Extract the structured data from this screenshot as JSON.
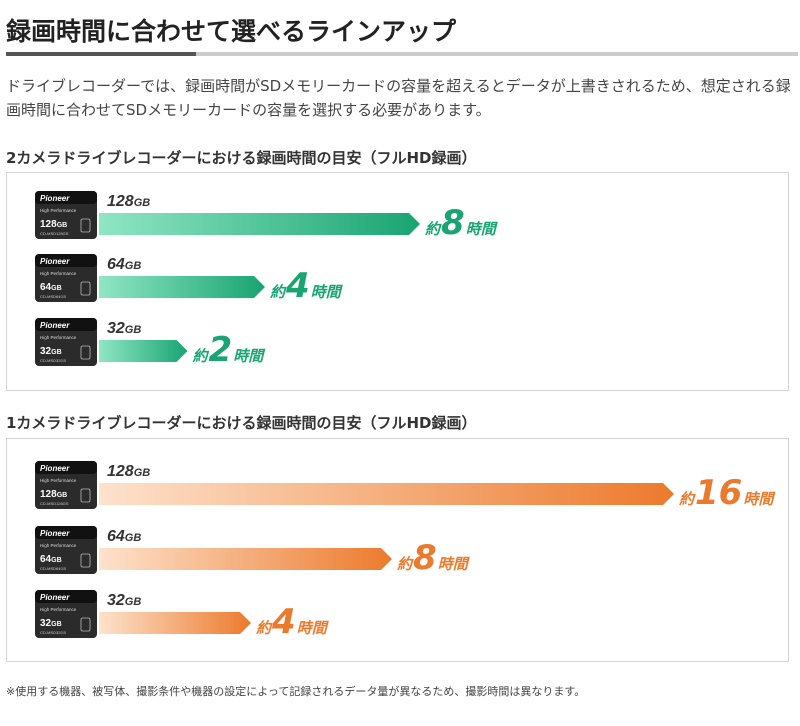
{
  "page": {
    "title": "録画時間に合わせて選べるラインアップ",
    "intro": "ドライブレコーダーでは、録画時間がSDメモリーカードの容量を超えるとデータが上書きされるため、想定される録画時間に合わせてSDメモリーカードの容量を選択する必要があります。",
    "footnote": "※使用する機器、被写体、撮影条件や機器の設定によって記録されるデータ量が異なるため、撮影時間は異なります。"
  },
  "card_text": {
    "brand": "Pioneer",
    "line": "High Performance"
  },
  "colors": {
    "green_start": "#8fe6c4",
    "green_end": "#19a472",
    "orange_start": "#fde2cc",
    "orange_end": "#ec7a2c",
    "card_body": "#2b2b2b"
  },
  "chart_data": [
    {
      "type": "bar",
      "title": "2カメラドライブレコーダーにおける録画時間の目安（フルHD録画）",
      "orientation": "horizontal",
      "categories": [
        "128GB",
        "64GB",
        "32GB"
      ],
      "card_labels": [
        {
          "capacity": "128GB",
          "model": "CD-MSD128GS"
        },
        {
          "capacity": "64GB",
          "model": "CD-MSD64GS"
        },
        {
          "capacity": "32GB",
          "model": "CD-MSD32GS"
        }
      ],
      "values": [
        8,
        4,
        2
      ],
      "value_labels": [
        {
          "prefix": "約",
          "number": "8",
          "unit": "時間"
        },
        {
          "prefix": "約",
          "number": "4",
          "unit": "時間"
        },
        {
          "prefix": "約",
          "number": "2",
          "unit": "時間"
        }
      ],
      "color": "green"
    },
    {
      "type": "bar",
      "title": "1カメラドライブレコーダーにおける録画時間の目安（フルHD録画）",
      "orientation": "horizontal",
      "categories": [
        "128GB",
        "64GB",
        "32GB"
      ],
      "card_labels": [
        {
          "capacity": "128GB",
          "model": "CD-MSD128GS"
        },
        {
          "capacity": "64GB",
          "model": "CD-MSD64GS"
        },
        {
          "capacity": "32GB",
          "model": "CD-MSD32GS"
        }
      ],
      "values": [
        16,
        8,
        4
      ],
      "value_labels": [
        {
          "prefix": "約",
          "number": "16",
          "unit": "時間"
        },
        {
          "prefix": "約",
          "number": "8",
          "unit": "時間"
        },
        {
          "prefix": "約",
          "number": "4",
          "unit": "時間"
        }
      ],
      "color": "orange"
    }
  ]
}
